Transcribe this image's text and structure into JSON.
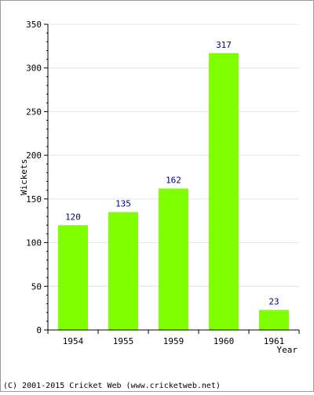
{
  "chart_data": {
    "type": "bar",
    "categories": [
      "1954",
      "1955",
      "1959",
      "1960",
      "1961"
    ],
    "values": [
      120,
      135,
      162,
      317,
      23
    ],
    "xlabel": "Year",
    "ylabel": "Wickets",
    "ylim": [
      0,
      350
    ],
    "yticks": [
      0,
      50,
      100,
      150,
      200,
      250,
      300,
      350
    ],
    "grid": true,
    "bar_color": "#80ff00",
    "label_color": "#000080"
  },
  "footer": {
    "text": "(C) 2001-2015 Cricket Web (www.cricketweb.net)"
  }
}
